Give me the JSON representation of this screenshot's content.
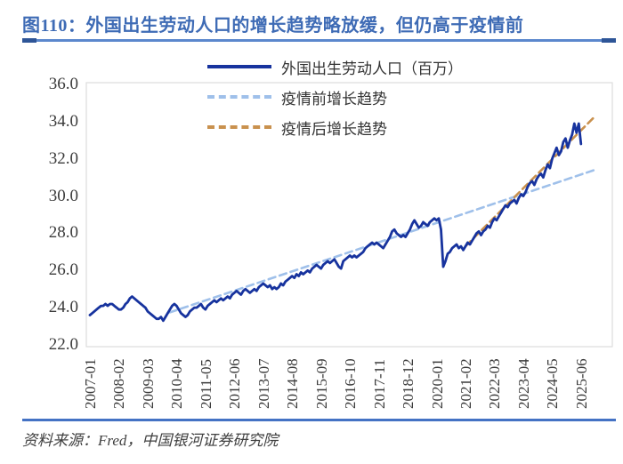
{
  "figure": {
    "number": "图110",
    "title": "图110：外国出生劳动人口的增长趋势略放缓，但仍高于疫情前",
    "source_note": "资料来源：Fred，中国银河证券研究院"
  },
  "colors": {
    "title_blue": "#3E6BB5",
    "top_divider_blue": "#5B87CD",
    "top_divider_cap_blue": "#2E5597",
    "bottom_divider_blue": "#4472C4",
    "series_navy": "#17339E",
    "trend_pre_light_blue": "#9FC0EA",
    "trend_post_orange": "#C9914E",
    "axis_text": "#3B3B3B",
    "plot_border": "#DCDCDC"
  },
  "chart_data": {
    "type": "line",
    "title": "外国出生劳动人口的增长趋势略放缓，但仍高于疫情前",
    "xlabel": "",
    "ylabel": "",
    "ylim": [
      22.0,
      36.0
    ],
    "y_tick_values": [
      36,
      34,
      32,
      30,
      28,
      26,
      24,
      22
    ],
    "y_tick_labels": [
      "36.0",
      "34.0",
      "32.0",
      "30.0",
      "28.0",
      "26.0",
      "24.0",
      "22.0"
    ],
    "x_range": [
      "2007-01",
      "2025-06"
    ],
    "x_tick_interval_months": 13,
    "x_tick_labels": [
      "2007-01",
      "2008-02",
      "2009-03",
      "2010-04",
      "2011-05",
      "2012-06",
      "2013-07",
      "2014-08",
      "2015-09",
      "2016-10",
      "2017-11",
      "2018-12",
      "2020-01",
      "2021-02",
      "2022-03",
      "2023-04",
      "2024-05",
      "2025-06"
    ],
    "grid": false,
    "legend_position": "top-center",
    "series": [
      {
        "name": "外国出生劳动人口（百万）",
        "style": "solid",
        "color": "#17339E",
        "start": "2007-01",
        "end": "2025-06",
        "frequency": "monthly",
        "values": [
          23.6,
          23.7,
          23.8,
          23.9,
          24.0,
          24.1,
          24.1,
          24.2,
          24.1,
          24.2,
          24.2,
          24.1,
          24.0,
          23.9,
          23.9,
          24.0,
          24.2,
          24.3,
          24.5,
          24.6,
          24.5,
          24.4,
          24.3,
          24.2,
          24.1,
          24.0,
          23.8,
          23.7,
          23.6,
          23.5,
          23.4,
          23.4,
          23.5,
          23.3,
          23.5,
          23.7,
          23.9,
          24.1,
          24.2,
          24.1,
          23.9,
          23.7,
          23.6,
          23.5,
          23.6,
          23.8,
          23.9,
          24.0,
          24.0,
          24.1,
          24.2,
          24.0,
          23.9,
          24.1,
          24.2,
          24.3,
          24.4,
          24.3,
          24.4,
          24.5,
          24.4,
          24.5,
          24.6,
          24.5,
          24.7,
          24.8,
          24.9,
          24.8,
          24.7,
          24.9,
          25.0,
          24.9,
          24.8,
          24.9,
          25.0,
          24.9,
          25.1,
          25.2,
          25.3,
          25.2,
          25.1,
          25.2,
          25.0,
          25.1,
          25.0,
          25.1,
          25.3,
          25.2,
          25.4,
          25.5,
          25.6,
          25.7,
          25.6,
          25.8,
          25.7,
          25.9,
          25.8,
          25.9,
          26.0,
          25.9,
          26.1,
          26.2,
          26.3,
          26.2,
          26.1,
          26.3,
          26.4,
          26.5,
          26.4,
          26.5,
          26.6,
          26.4,
          26.2,
          26.1,
          26.5,
          26.6,
          26.7,
          26.8,
          26.7,
          26.8,
          26.7,
          26.8,
          26.9,
          27.0,
          27.2,
          27.3,
          27.4,
          27.5,
          27.4,
          27.5,
          27.4,
          27.3,
          27.2,
          27.4,
          27.6,
          27.8,
          28.1,
          28.2,
          28.0,
          27.9,
          27.8,
          27.9,
          27.8,
          28.0,
          28.2,
          28.5,
          28.7,
          28.5,
          28.3,
          28.4,
          28.6,
          28.5,
          28.4,
          28.6,
          28.7,
          28.8,
          28.7,
          28.8,
          28.2,
          26.2,
          26.5,
          26.9,
          27.0,
          27.2,
          27.3,
          27.4,
          27.2,
          27.3,
          27.1,
          27.3,
          27.5,
          27.4,
          27.6,
          27.8,
          28.0,
          28.1,
          27.9,
          28.1,
          28.2,
          28.4,
          28.3,
          28.6,
          28.8,
          28.7,
          28.9,
          29.1,
          29.3,
          29.5,
          29.4,
          29.6,
          29.7,
          29.8,
          29.6,
          29.9,
          30.1,
          30.0,
          30.2,
          30.5,
          30.7,
          30.8,
          30.6,
          30.9,
          31.1,
          31.2,
          31.0,
          31.4,
          31.7,
          31.5,
          32.0,
          32.3,
          32.6,
          32.2,
          32.4,
          32.9,
          33.1,
          32.6,
          33.0,
          33.3,
          33.9,
          33.4,
          33.9,
          32.8
        ]
      },
      {
        "name": "疫情前增长趋势",
        "style": "dashed",
        "color": "#9FC0EA",
        "x_month_index": [
          36,
          227
        ],
        "values": [
          23.75,
          31.4
        ]
      },
      {
        "name": "疫情后增长趋势",
        "style": "dashed",
        "color": "#C9914E",
        "x_month_index": [
          169,
          227
        ],
        "values": [
          27.3,
          34.25
        ]
      }
    ]
  }
}
